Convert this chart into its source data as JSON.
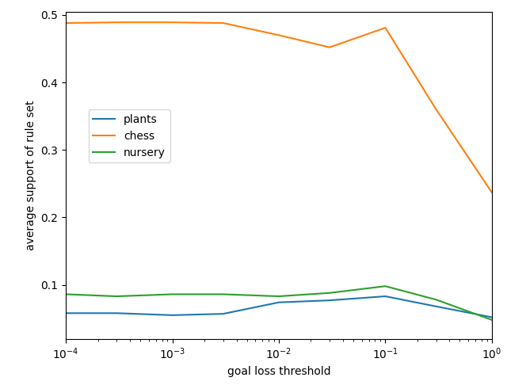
{
  "x_values": [
    0.0001,
    0.0003,
    0.001,
    0.003,
    0.01,
    0.03,
    0.1,
    0.3,
    1.0
  ],
  "plants": [
    0.058,
    0.058,
    0.055,
    0.057,
    0.074,
    0.077,
    0.083,
    0.068,
    0.052
  ],
  "chess": [
    0.488,
    0.489,
    0.489,
    0.488,
    0.47,
    0.452,
    0.481,
    0.36,
    0.237
  ],
  "nursery": [
    0.086,
    0.083,
    0.086,
    0.086,
    0.083,
    0.088,
    0.098,
    0.078,
    0.048
  ],
  "plants_color": "#1f77b4",
  "chess_color": "#ff7f0e",
  "nursery_color": "#2ca02c",
  "xlabel": "goal loss threshold",
  "ylabel": "average support of rule set",
  "legend_labels": [
    "plants",
    "chess",
    "nursery"
  ],
  "ylim": [
    0.02,
    0.505
  ],
  "xlim": [
    0.0001,
    1.0
  ],
  "yticks": [
    0.1,
    0.2,
    0.3,
    0.4,
    0.5
  ]
}
